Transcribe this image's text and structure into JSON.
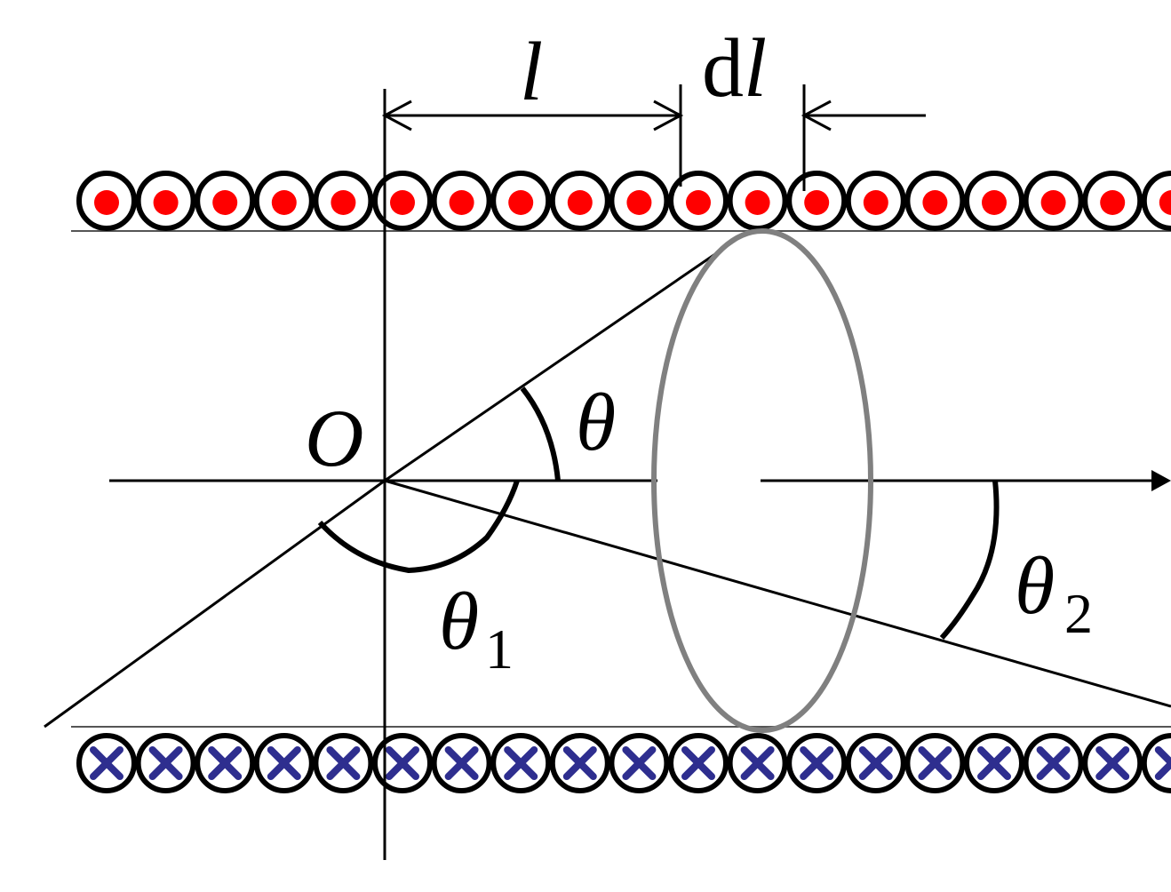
{
  "labels": {
    "l": "l",
    "dl_d": "d",
    "dl_l": "l",
    "origin": "O",
    "theta": "θ",
    "theta1": "θ",
    "theta1_sub": "1",
    "theta2": "θ",
    "theta2_sub": "2"
  },
  "current_markers": {
    "top_count": 19,
    "bottom_count": 19,
    "top_symbol": "dot-out-of-page",
    "bottom_symbol": "cross-into-page"
  },
  "colors": {
    "line": "#000000",
    "dot": "#ff0000",
    "cross": "#2e2e8f",
    "loop": "#808080"
  }
}
